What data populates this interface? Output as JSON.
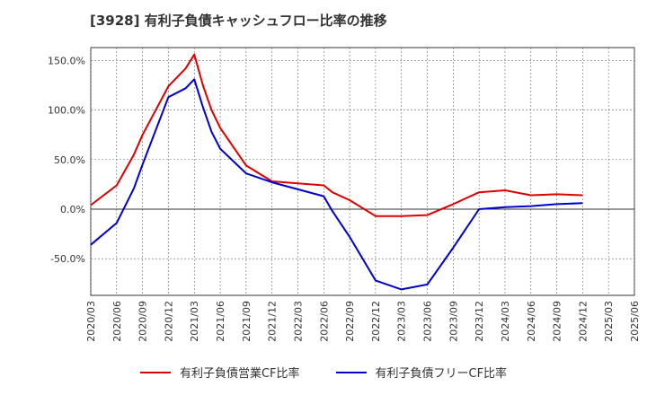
{
  "chart_data": {
    "type": "line",
    "title": "[3928]  有利子負債キャッシュフロー比率の推移",
    "xlabel": "",
    "ylabel": "",
    "ylim": [
      -87,
      163
    ],
    "grid": true,
    "legend_placement": "bottom",
    "y_ticks": [
      "150.0%",
      "100.0%",
      "50.0%",
      "0.0%",
      "-50.0%"
    ],
    "y_tick_values": [
      150,
      100,
      50,
      0,
      -50
    ],
    "x_ticks": [
      "2020/03",
      "2020/06",
      "2020/09",
      "2020/12",
      "2021/03",
      "2021/06",
      "2021/09",
      "2021/12",
      "2022/03",
      "2022/06",
      "2022/09",
      "2022/12",
      "2023/03",
      "2023/06",
      "2023/09",
      "2023/12",
      "2024/03",
      "2024/06",
      "2024/09",
      "2024/12",
      "2025/03",
      "2025/06"
    ],
    "series": [
      {
        "name": "有利子負債営業CF比率",
        "color": "#dd0000",
        "points": [
          [
            "2020/03",
            4
          ],
          [
            "2020/06",
            24
          ],
          [
            "2020/08",
            55
          ],
          [
            "2020/09",
            75
          ],
          [
            "2020/12",
            124
          ],
          [
            "2021/02",
            142
          ],
          [
            "2021/03",
            156
          ],
          [
            "2021/04",
            125
          ],
          [
            "2021/05",
            100
          ],
          [
            "2021/06",
            82
          ],
          [
            "2021/09",
            44
          ],
          [
            "2021/12",
            28
          ],
          [
            "2022/03",
            26
          ],
          [
            "2022/06",
            24
          ],
          [
            "2022/07",
            17
          ],
          [
            "2022/09",
            9
          ],
          [
            "2022/12",
            -7
          ],
          [
            "2023/03",
            -7
          ],
          [
            "2023/06",
            -6
          ],
          [
            "2023/09",
            5
          ],
          [
            "2023/12",
            17
          ],
          [
            "2024/03",
            19
          ],
          [
            "2024/06",
            14
          ],
          [
            "2024/09",
            15
          ],
          [
            "2024/12",
            14
          ]
        ]
      },
      {
        "name": "有利子負債フリーCF比率",
        "color": "#0000cc",
        "points": [
          [
            "2020/03",
            -36
          ],
          [
            "2020/06",
            -14
          ],
          [
            "2020/08",
            21
          ],
          [
            "2020/09",
            45
          ],
          [
            "2020/12",
            113
          ],
          [
            "2021/02",
            122
          ],
          [
            "2021/03",
            131
          ],
          [
            "2021/04",
            103
          ],
          [
            "2021/05",
            78
          ],
          [
            "2021/06",
            61
          ],
          [
            "2021/09",
            36
          ],
          [
            "2021/12",
            27
          ],
          [
            "2022/03",
            20
          ],
          [
            "2022/06",
            13
          ],
          [
            "2022/07",
            -2
          ],
          [
            "2022/09",
            -28
          ],
          [
            "2022/12",
            -72
          ],
          [
            "2023/03",
            -81
          ],
          [
            "2023/06",
            -76
          ],
          [
            "2023/09",
            -39
          ],
          [
            "2023/12",
            0
          ],
          [
            "2024/03",
            2
          ],
          [
            "2024/06",
            3
          ],
          [
            "2024/09",
            5
          ],
          [
            "2024/12",
            6
          ]
        ]
      }
    ]
  }
}
